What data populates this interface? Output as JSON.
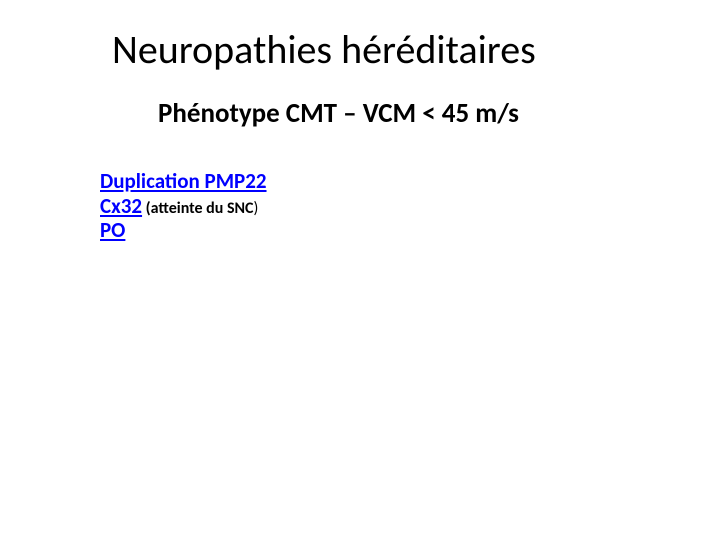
{
  "title": "Neuropathies héréditaires",
  "subtitle": "Phénotype CMT – VCM < 45 m/s",
  "lines": {
    "l1": "Duplication PMP22",
    "l2_main": "Cx32",
    "l2_paren": " (atteinte du SNC",
    "l2_close": ")",
    "l3": "PO"
  },
  "colors": {
    "link_blue": "#0000ff",
    "text_black": "#000000",
    "background": "#ffffff"
  },
  "fonts": {
    "title_size": 40,
    "subtitle_size": 27,
    "body_size": 21,
    "paren_size": 16
  }
}
